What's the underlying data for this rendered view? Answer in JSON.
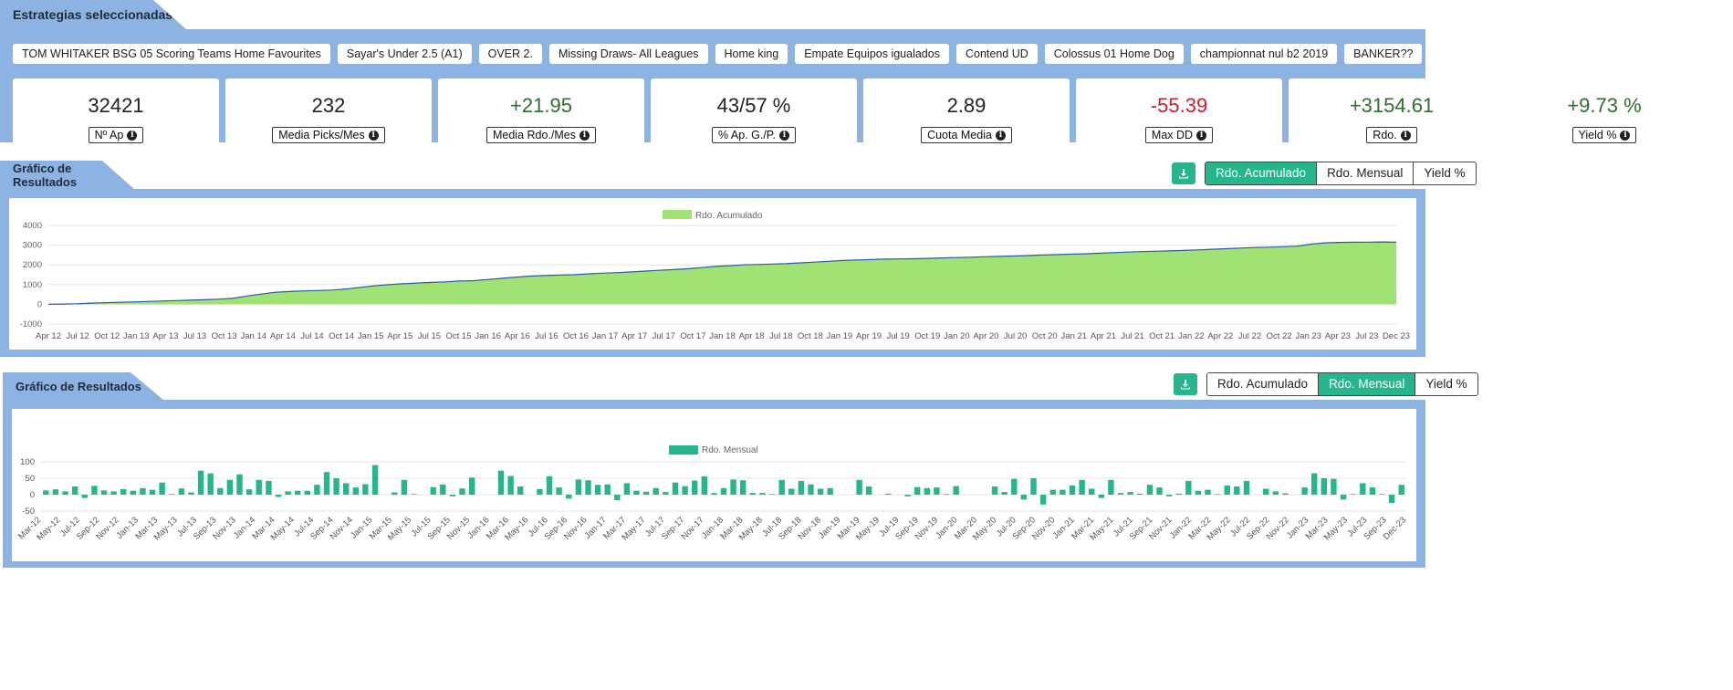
{
  "strategies": {
    "title": "Estrategias seleccionadas:",
    "chips": [
      "TOM WHITAKER BSG 05 Scoring Teams Home Favourites",
      "Sayar's Under 2.5 (A1)",
      "OVER 2.",
      "Missing Draws- All Leagues",
      "Home king",
      "Empate Equipos igualados",
      "Contend UD",
      "Colossus 01 Home Dog",
      "championnat nul b2 2019",
      "BANKER??"
    ]
  },
  "stats": [
    {
      "value": "32421",
      "label": "Nº Ap",
      "tone": "neutral"
    },
    {
      "value": "232",
      "label": "Media Picks/Mes",
      "tone": "neutral"
    },
    {
      "value": "+21.95",
      "label": "Media Rdo./Mes",
      "tone": "pos"
    },
    {
      "value": "43/57 %",
      "label": "% Ap. G./P.",
      "tone": "neutral"
    },
    {
      "value": "2.89",
      "label": "Cuota Media",
      "tone": "neutral"
    },
    {
      "value": "-55.39",
      "label": "Max DD",
      "tone": "neg"
    },
    {
      "value": "+3154.61",
      "label": "Rdo.",
      "tone": "pos"
    },
    {
      "value": "+9.73 %",
      "label": "Yield %",
      "tone": "pos"
    }
  ],
  "info_icon_glyph": "i",
  "colors": {
    "panel": "#8db3e2",
    "accent": "#26b58c",
    "area_fill": "#a1e274",
    "area_line": "#2a5aa8",
    "pos": "#2e6e2e",
    "neg": "#cc1f2a"
  },
  "chart1": {
    "title": "Gráfico de Resultados",
    "buttons": [
      "Rdo. Acumulado",
      "Rdo. Mensual",
      "Yield %"
    ],
    "active": 0
  },
  "chart2": {
    "title": "Gráfico de Resultados",
    "buttons": [
      "Rdo. Acumulado",
      "Rdo. Mensual",
      "Yield %"
    ],
    "active": 1
  },
  "chart_data": [
    {
      "type": "area",
      "legend": "Rdo. Acumulado",
      "legend_position": "top",
      "grid": true,
      "ylim": [
        -1000,
        4000
      ],
      "yticks": [
        "4000",
        "3000",
        "2000",
        "1000",
        "0",
        "-1000"
      ],
      "xticks": [
        "Apr 12",
        "Jul 12",
        "Oct 12",
        "Jan 13",
        "Apr 13",
        "Jul 13",
        "Oct 13",
        "Jan 14",
        "Apr 14",
        "Jul 14",
        "Oct 14",
        "Jan 15",
        "Apr 15",
        "Jul 15",
        "Oct 15",
        "Jan 16",
        "Apr 16",
        "Jul 16",
        "Oct 16",
        "Jan 17",
        "Apr 17",
        "Jul 17",
        "Oct 17",
        "Jan 18",
        "Apr 18",
        "Jul 18",
        "Oct 18",
        "Jan 19",
        "Apr 19",
        "Jul 19",
        "Oct 19",
        "Jan 20",
        "Apr 20",
        "Jul 20",
        "Oct 20",
        "Jan 21",
        "Apr 21",
        "Jul 21",
        "Oct 21",
        "Jan 22",
        "Apr 22",
        "Jul 22",
        "Oct 22",
        "Jan 23",
        "Apr 23",
        "Jul 23",
        "Dec 23"
      ],
      "y": [
        0,
        15,
        30,
        60,
        80,
        100,
        120,
        145,
        165,
        190,
        210,
        230,
        260,
        300,
        420,
        520,
        610,
        650,
        680,
        700,
        720,
        780,
        860,
        940,
        1000,
        1040,
        1080,
        1110,
        1140,
        1180,
        1200,
        1260,
        1320,
        1380,
        1430,
        1460,
        1480,
        1500,
        1540,
        1580,
        1600,
        1640,
        1680,
        1720,
        1760,
        1800,
        1860,
        1920,
        1960,
        2000,
        2020,
        2040,
        2060,
        2100,
        2140,
        2180,
        2220,
        2250,
        2270,
        2290,
        2300,
        2310,
        2330,
        2350,
        2370,
        2390,
        2410,
        2430,
        2450,
        2470,
        2500,
        2520,
        2540,
        2560,
        2590,
        2620,
        2650,
        2670,
        2690,
        2710,
        2730,
        2760,
        2790,
        2820,
        2850,
        2880,
        2900,
        2920,
        2950,
        3050,
        3120,
        3140,
        3150,
        3155,
        3160,
        3154.61
      ]
    },
    {
      "type": "bar",
      "legend": "Rdo. Mensual",
      "legend_position": "top",
      "grid": true,
      "ylim": [
        -50,
        100
      ],
      "yticks": [
        "100",
        "50",
        "0",
        "-50"
      ],
      "xticks": [
        "Mar-12",
        "May-12",
        "Jul-12",
        "Sep-12",
        "Nov-12",
        "Jan-13",
        "Mar-13",
        "May-13",
        "Jul-13",
        "Sep-13",
        "Nov-13",
        "Jan-14",
        "Mar-14",
        "May-14",
        "Jul-14",
        "Sep-14",
        "Nov-14",
        "Jan-15",
        "Mar-15",
        "May-15",
        "Jul-15",
        "Sep-15",
        "Nov-15",
        "Jan-16",
        "Mar-16",
        "May-16",
        "Jul-16",
        "Sep-16",
        "Nov-16",
        "Jan-17",
        "Mar-17",
        "May-17",
        "Jul-17",
        "Sep-17",
        "Nov-17",
        "Jan-18",
        "Mar-18",
        "May-18",
        "Jul-18",
        "Sep-18",
        "Nov-18",
        "Jan-19",
        "Mar-19",
        "May-19",
        "Jul-19",
        "Sep-19",
        "Nov-19",
        "Jan-20",
        "Mar-20",
        "May-20",
        "Jul-20",
        "Sep-20",
        "Nov-20",
        "Jan-21",
        "Mar-21",
        "May-21",
        "Jul-21",
        "Sep-21",
        "Nov-21",
        "Jan-22",
        "Mar-22",
        "May-22",
        "Jul-22",
        "Sep-22",
        "Nov-22",
        "Jan-23",
        "Mar-23",
        "May-23",
        "Jul-23",
        "Sep-23",
        "Dec-23"
      ],
      "values": [
        13,
        16,
        10,
        25,
        -10,
        27,
        13,
        10,
        17,
        12,
        20,
        15,
        37,
        2,
        19,
        7,
        73,
        65,
        20,
        45,
        62,
        16,
        45,
        42,
        -7,
        10,
        12,
        12,
        30,
        69,
        50,
        35,
        22,
        32,
        90,
        0,
        7,
        45,
        2,
        0,
        23,
        31,
        -5,
        19,
        52,
        0,
        0,
        73,
        57,
        25,
        0,
        17,
        56,
        22,
        -12,
        46,
        44,
        30,
        31,
        -17,
        35,
        12,
        9,
        20,
        8,
        37,
        26,
        43,
        56,
        5,
        20,
        46,
        44,
        5,
        5,
        2,
        45,
        18,
        42,
        31,
        18,
        20,
        0,
        0,
        45,
        25,
        0,
        3,
        0,
        -5,
        23,
        20,
        22,
        2,
        26,
        0,
        0,
        0,
        25,
        8,
        48,
        -15,
        50,
        -30,
        15,
        15,
        28,
        45,
        18,
        -10,
        45,
        5,
        8,
        3,
        30,
        22,
        -5,
        3,
        42,
        12,
        15,
        2,
        28,
        25,
        42,
        0,
        18,
        10,
        4,
        0,
        22,
        65,
        50,
        48,
        -15,
        2,
        35,
        22,
        2,
        -25,
        30
      ]
    }
  ]
}
